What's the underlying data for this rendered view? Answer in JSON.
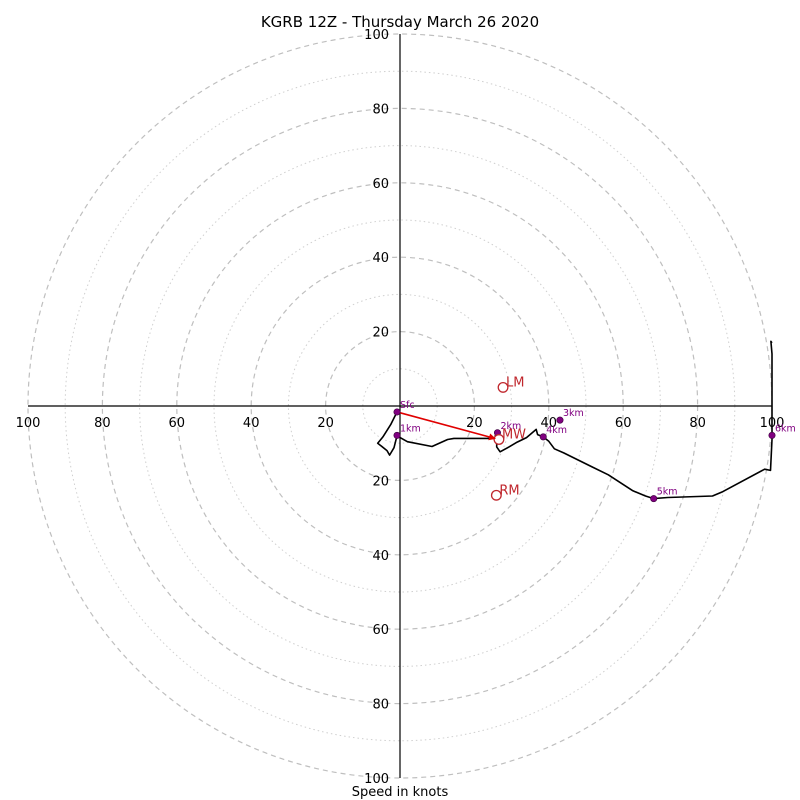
{
  "chart_data": {
    "type": "hodograph",
    "title": "KGRB 12Z - Thursday March 26 2020",
    "xlabel": "Speed in knots",
    "ylabel": "",
    "range_knots": [
      -100,
      100
    ],
    "major_rings": [
      20,
      40,
      60,
      80,
      100
    ],
    "minor_rings": [
      10,
      30,
      50,
      70,
      90
    ],
    "tick_labels": [
      "20",
      "40",
      "60",
      "80",
      "100"
    ],
    "grid": true,
    "colors": {
      "trace": "#000000",
      "height_markers": "#800080",
      "storm_motion": "#c0272d",
      "shear_vector": "#e00000",
      "major_rings": "#bfbfbf"
    },
    "trace_uv": [
      [
        -0.8,
        -1.6
      ],
      [
        -2.5,
        -5
      ],
      [
        -4.6,
        -8.3
      ],
      [
        -6,
        -10
      ],
      [
        -3.5,
        -12
      ],
      [
        -2.8,
        -13.2
      ],
      [
        -1.6,
        -11.2
      ],
      [
        -0.8,
        -8
      ],
      [
        2,
        -9.6
      ],
      [
        8.6,
        -10.9
      ],
      [
        12.8,
        -9
      ],
      [
        14.5,
        -8.7
      ],
      [
        20,
        -8.7
      ],
      [
        25.6,
        -8.7
      ],
      [
        25.6,
        -8
      ],
      [
        26.2,
        -7.2
      ],
      [
        26,
        -9
      ],
      [
        26,
        -11
      ],
      [
        26.9,
        -12.3
      ],
      [
        29.3,
        -11
      ],
      [
        31.5,
        -9.7
      ],
      [
        34,
        -8.5
      ],
      [
        36.6,
        -6.3
      ],
      [
        37,
        -7.7
      ],
      [
        38.5,
        -8.3
      ],
      [
        40,
        -9.5
      ],
      [
        41.5,
        -11.5
      ],
      [
        44,
        -12.6
      ],
      [
        51.7,
        -16.4
      ],
      [
        56,
        -18.5
      ],
      [
        62.6,
        -22.8
      ],
      [
        66,
        -24.2
      ],
      [
        68.2,
        -24.9
      ],
      [
        72,
        -24.6
      ],
      [
        84,
        -24.2
      ],
      [
        86.8,
        -23
      ],
      [
        98,
        -17
      ],
      [
        99.6,
        -17.3
      ],
      [
        100,
        -9
      ],
      [
        100,
        -3
      ],
      [
        100,
        0
      ],
      [
        100,
        8
      ],
      [
        100,
        14
      ],
      [
        99.7,
        17.4
      ],
      [
        100,
        17
      ]
    ],
    "heights": [
      {
        "label": "Sfc",
        "u": -0.8,
        "v": -1.6
      },
      {
        "label": "1km",
        "u": -0.8,
        "v": -7.9
      },
      {
        "label": "2km",
        "u": 26.2,
        "v": -7.2
      },
      {
        "label": "3km",
        "u": 43,
        "v": -3.8
      },
      {
        "label": "4km",
        "u": 38.5,
        "v": -8.3
      },
      {
        "label": "5km",
        "u": 68.2,
        "v": -24.9
      },
      {
        "label": "6km",
        "u": 100,
        "v": -7.9
      }
    ],
    "storm_motion": [
      {
        "label": "LM",
        "u": 27.7,
        "v": 5
      },
      {
        "label": "MW",
        "u": 26.6,
        "v": -9
      },
      {
        "label": "RM",
        "u": 25.9,
        "v": -24
      }
    ],
    "shear_vector": {
      "from": [
        -0.8,
        -1.6
      ],
      "to": [
        25.8,
        -8.8
      ]
    }
  }
}
